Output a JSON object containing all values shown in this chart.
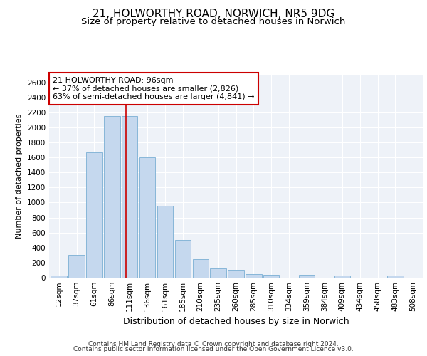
{
  "title_line1": "21, HOLWORTHY ROAD, NORWICH, NR5 9DG",
  "title_line2": "Size of property relative to detached houses in Norwich",
  "xlabel": "Distribution of detached houses by size in Norwich",
  "ylabel": "Number of detached properties",
  "categories": [
    "12sqm",
    "37sqm",
    "61sqm",
    "86sqm",
    "111sqm",
    "136sqm",
    "161sqm",
    "185sqm",
    "210sqm",
    "235sqm",
    "260sqm",
    "285sqm",
    "310sqm",
    "334sqm",
    "359sqm",
    "384sqm",
    "409sqm",
    "434sqm",
    "458sqm",
    "483sqm",
    "508sqm"
  ],
  "values": [
    25,
    300,
    1670,
    2150,
    2150,
    1600,
    960,
    505,
    250,
    120,
    100,
    50,
    35,
    0,
    35,
    0,
    25,
    0,
    0,
    25,
    0
  ],
  "bar_color": "#c5d8ee",
  "bar_edge_color": "#7aafd4",
  "vline_x": 3.78,
  "vline_color": "#cc0000",
  "annotation_text": "21 HOLWORTHY ROAD: 96sqm\n← 37% of detached houses are smaller (2,826)\n63% of semi-detached houses are larger (4,841) →",
  "annotation_box_color": "#cc0000",
  "ylim": [
    0,
    2700
  ],
  "yticks": [
    0,
    200,
    400,
    600,
    800,
    1000,
    1200,
    1400,
    1600,
    1800,
    2000,
    2200,
    2400,
    2600
  ],
  "footer_line1": "Contains HM Land Registry data © Crown copyright and database right 2024.",
  "footer_line2": "Contains public sector information licensed under the Open Government Licence v3.0.",
  "plot_bg_color": "#eef2f8",
  "grid_color": "#ffffff",
  "title1_fontsize": 11,
  "title2_fontsize": 9.5,
  "xlabel_fontsize": 9,
  "ylabel_fontsize": 8,
  "tick_fontsize": 7.5,
  "annot_fontsize": 8,
  "footer_fontsize": 6.5
}
